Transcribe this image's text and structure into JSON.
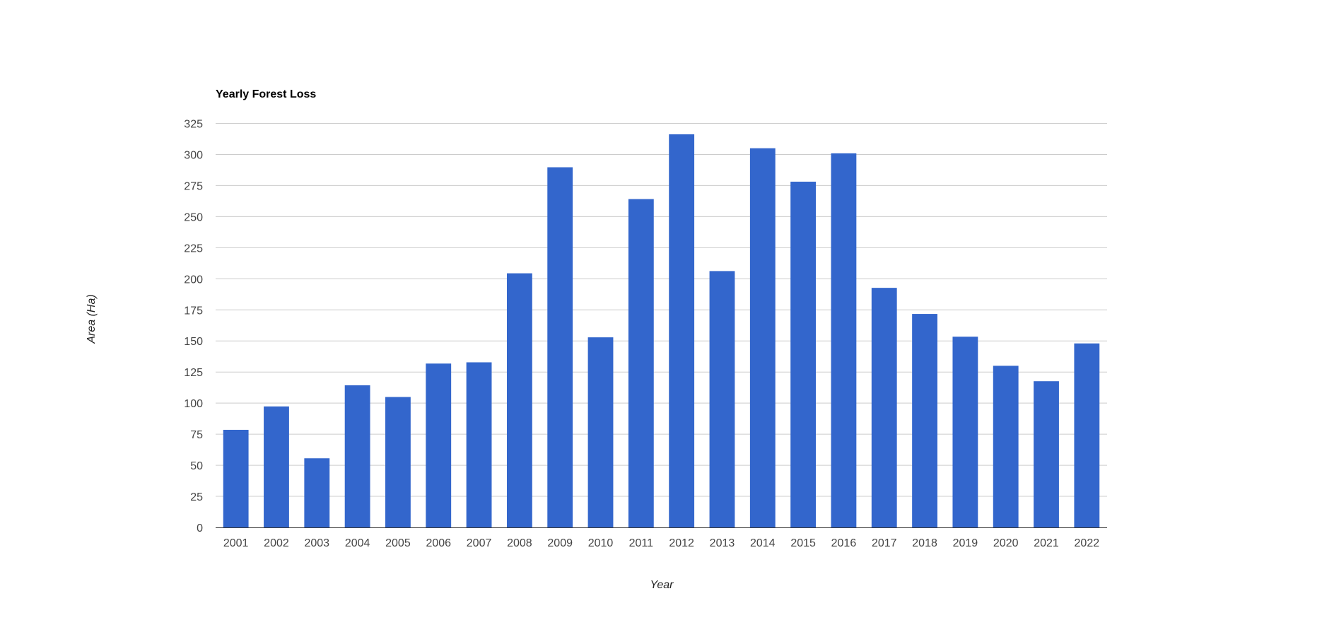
{
  "chart_data": {
    "type": "bar",
    "title": "Yearly Forest Loss",
    "xlabel": "Year",
    "ylabel": "Area (Ha)",
    "ylim": [
      0,
      325
    ],
    "yticks": [
      0,
      25,
      50,
      75,
      100,
      125,
      150,
      175,
      200,
      225,
      250,
      275,
      300,
      325
    ],
    "grid": true,
    "legend": "none",
    "bar_color": "#3366cc",
    "categories": [
      "2001",
      "2002",
      "2003",
      "2004",
      "2005",
      "2006",
      "2007",
      "2008",
      "2009",
      "2010",
      "2011",
      "2012",
      "2013",
      "2014",
      "2015",
      "2016",
      "2017",
      "2018",
      "2019",
      "2020",
      "2021",
      "2022"
    ],
    "values": [
      78.5,
      97.3,
      55.6,
      114.3,
      104.9,
      131.8,
      132.8,
      204.4,
      289.7,
      152.9,
      264.1,
      316.2,
      206.2,
      305.0,
      278.1,
      300.9,
      192.7,
      171.7,
      153.4,
      130.0,
      117.6,
      148.0
    ]
  }
}
